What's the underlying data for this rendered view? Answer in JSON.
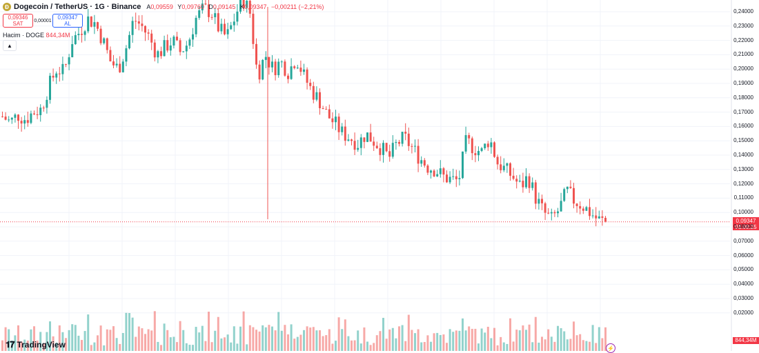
{
  "header": {
    "coin_icon": "dogecoin-icon",
    "title": "Dogecoin / TetherUS · 1G · Binance",
    "open_label": "A",
    "open": "0,09559",
    "high_label": "Y",
    "high": "0,09760",
    "low_label": "D",
    "low": "0,09145",
    "close_label": "K",
    "close": "0,09347",
    "change": "−0,00211 (−2,21%)"
  },
  "trade": {
    "sell_price": "0,09346",
    "sell_label": "SAT",
    "spread": "0,00001",
    "buy_price": "0,09347",
    "buy_label": "AL"
  },
  "volume_legend": {
    "label": "Hacim · DOGE",
    "value": "844,34M"
  },
  "collapse_icon": "chevron-up-icon",
  "price_tag": {
    "price": "0,09347",
    "countdown": "01:08:25"
  },
  "volume_tag": "844,34M",
  "brand": "TradingView",
  "colors": {
    "up": "#26a69a",
    "down": "#ef5350",
    "accent": "#2962ff",
    "price_line": "#f23645"
  },
  "chart_data": {
    "type": "candlestick",
    "y_axis": [
      "0,24000",
      "0,23000",
      "0,22000",
      "0,21000",
      "0,20000",
      "0,19000",
      "0,18000",
      "0,17000",
      "0,16000",
      "0,15000",
      "0,14000",
      "0,13000",
      "0,12000",
      "0,11000",
      "0,10000",
      "0,08000",
      "0,07000",
      "0,06000",
      "0,05000",
      "0,04000",
      "0,03000",
      "0,02000"
    ],
    "ylim": [
      0.06,
      0.24
    ],
    "last_price": 0.09347,
    "close_path": [
      0.167,
      0.163,
      0.168,
      0.165,
      0.17,
      0.172,
      0.188,
      0.2,
      0.198,
      0.22,
      0.226,
      0.235,
      0.232,
      0.22,
      0.205,
      0.2,
      0.215,
      0.235,
      0.23,
      0.222,
      0.21,
      0.215,
      0.22,
      0.212,
      0.218,
      0.235,
      0.242,
      0.24,
      0.228,
      0.222,
      0.235,
      0.25,
      0.24,
      0.195,
      0.21,
      0.2,
      0.205,
      0.198,
      0.208,
      0.195,
      0.185,
      0.178,
      0.168,
      0.162,
      0.155,
      0.152,
      0.148,
      0.155,
      0.15,
      0.145,
      0.138,
      0.148,
      0.152,
      0.145,
      0.138,
      0.132,
      0.13,
      0.125,
      0.123,
      0.122,
      0.15,
      0.145,
      0.142,
      0.152,
      0.135,
      0.13,
      0.125,
      0.118,
      0.125,
      0.11,
      0.1,
      0.095,
      0.102,
      0.115,
      0.108,
      0.105,
      0.1,
      0.095,
      0.0935
    ],
    "volume_range": [
      0,
      0.06
    ]
  }
}
